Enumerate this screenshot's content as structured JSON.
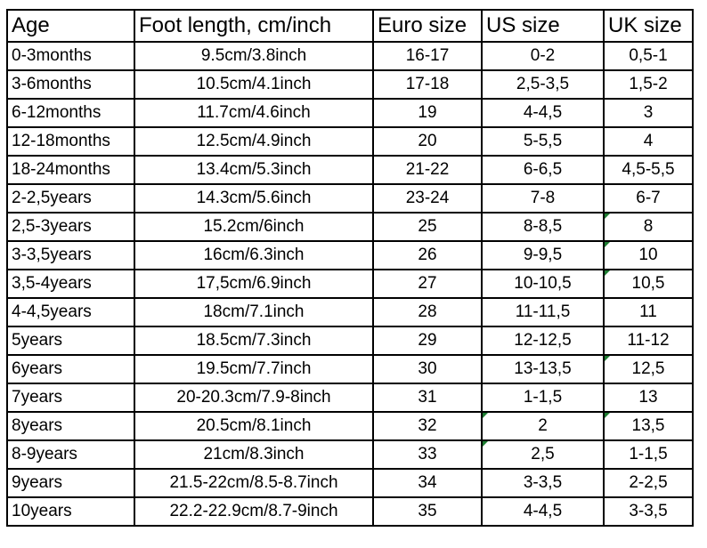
{
  "headers": [
    "Age",
    "Foot length, cm/inch",
    "Euro size",
    "US size",
    "UK size"
  ],
  "rows": [
    [
      "0-3months",
      "9.5cm/3.8inch",
      "16-17",
      "0-2",
      "0,5-1"
    ],
    [
      "3-6months",
      "10.5cm/4.1inch",
      "17-18",
      "2,5-3,5",
      "1,5-2"
    ],
    [
      "6-12months",
      "11.7cm/4.6inch",
      "19",
      "4-4,5",
      "3"
    ],
    [
      "12-18months",
      "12.5cm/4.9inch",
      "20",
      "5-5,5",
      "4"
    ],
    [
      "18-24months",
      "13.4cm/5.3inch",
      "21-22",
      "6-6,5",
      "4,5-5,5"
    ],
    [
      "2-2,5years",
      "14.3cm/5.6inch",
      "23-24",
      "7-8",
      "6-7"
    ],
    [
      "2,5-3years",
      "15.2cm/6inch",
      "25",
      "8-8,5",
      "8"
    ],
    [
      "3-3,5years",
      "16cm/6.3inch",
      "26",
      "9-9,5",
      "10"
    ],
    [
      "3,5-4years",
      "17,5cm/6.9inch",
      "27",
      "10-10,5",
      "10,5"
    ],
    [
      "4-4,5years",
      "18cm/7.1inch",
      "28",
      "11-11,5",
      "11"
    ],
    [
      "5years",
      "18.5cm/7.3inch",
      "29",
      "12-12,5",
      "11-12"
    ],
    [
      "6years",
      "19.5cm/7.7inch",
      "30",
      "13-13,5",
      "12,5"
    ],
    [
      "7years",
      "20-20.3cm/7.9-8inch",
      "31",
      "1-1,5",
      "13"
    ],
    [
      "8years",
      "20.5cm/8.1inch",
      "32",
      "2",
      "13,5"
    ],
    [
      "8-9years",
      "21cm/8.3inch",
      "33",
      "2,5",
      "1-1,5"
    ],
    [
      "9years",
      "21.5-22cm/8.5-8.7inch",
      "34",
      "3-3,5",
      "2-2,5"
    ],
    [
      "10years",
      "22.2-22.9cm/8.7-9inch",
      "35",
      "4-4,5",
      "3-3,5"
    ]
  ],
  "marker_color": "#1e7d32"
}
